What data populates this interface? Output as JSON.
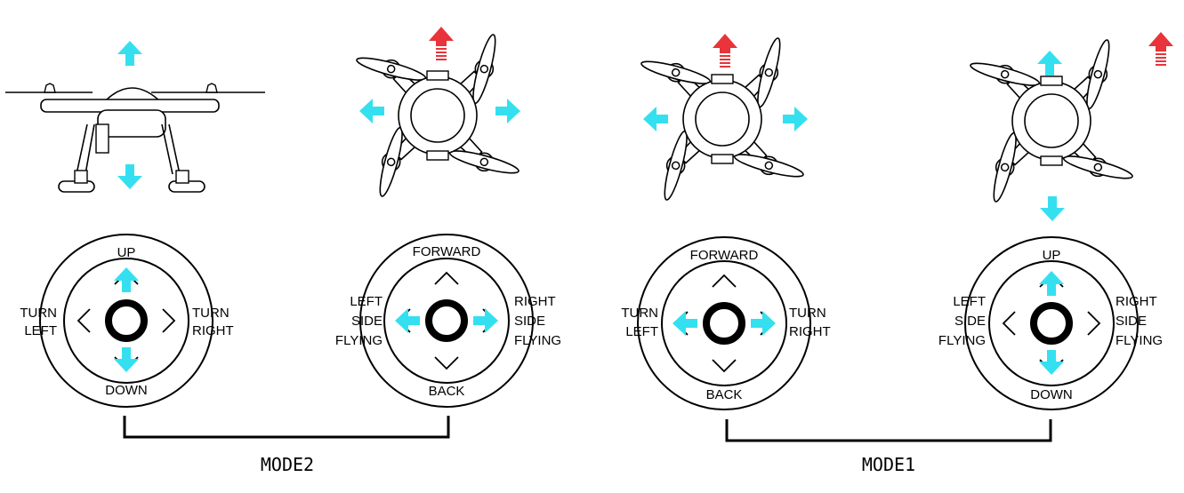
{
  "colors": {
    "arrow_move": "#34e0f0",
    "arrow_forward": "#e8343a",
    "line": "#000000"
  },
  "modes": [
    {
      "label": "MODE2"
    },
    {
      "label": "MODE1"
    }
  ],
  "sticks": [
    {
      "top": "UP",
      "bottom": "DOWN",
      "left": [
        "TURN",
        "LEFT"
      ],
      "right": [
        "TURN",
        "RIGHT"
      ]
    },
    {
      "top": "FORWARD",
      "bottom": "BACK",
      "left": [
        "LEFT",
        "SIDE",
        "FLYING"
      ],
      "right": [
        "RIGHT",
        "SIDE",
        "FLYING"
      ]
    },
    {
      "top": "FORWARD",
      "bottom": "BACK",
      "left": [
        "TURN",
        "LEFT"
      ],
      "right": [
        "TURN",
        "RIGHT"
      ]
    },
    {
      "top": "UP",
      "bottom": "DOWN",
      "left": [
        "LEFT",
        "SIDE",
        "FLYING"
      ],
      "right": [
        "RIGHT",
        "SIDE",
        "FLYING"
      ]
    }
  ]
}
